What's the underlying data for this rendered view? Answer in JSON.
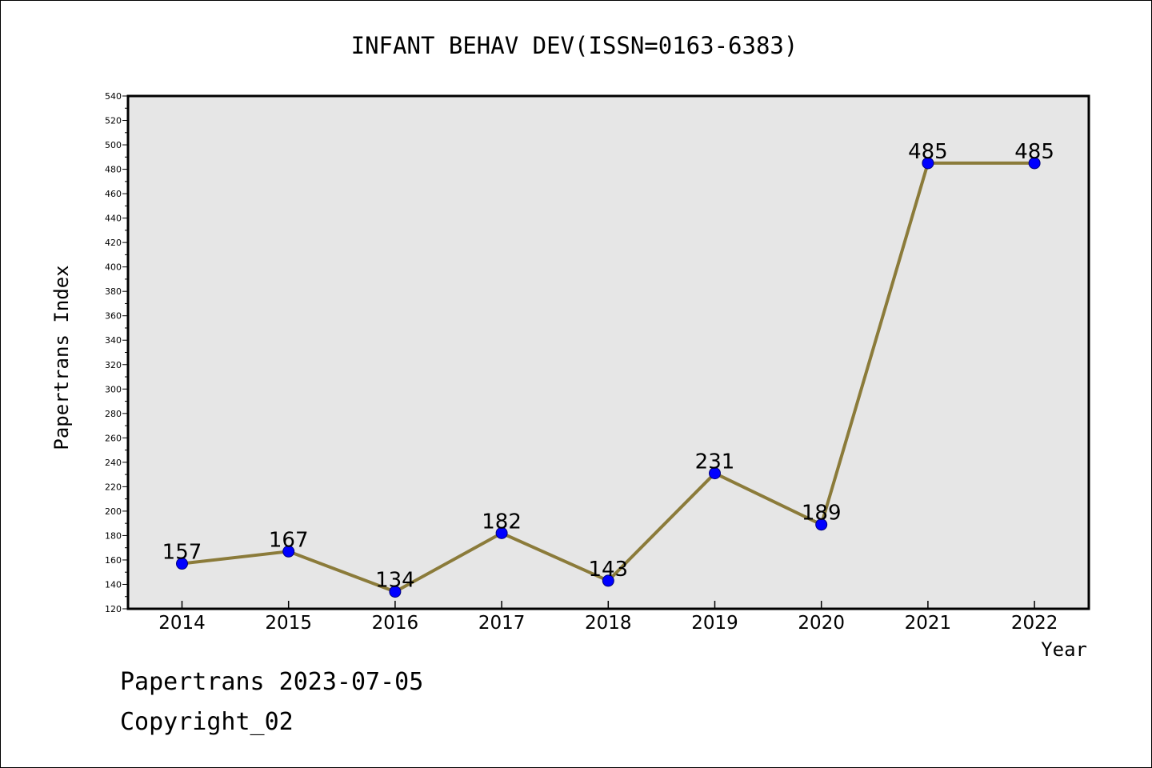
{
  "chart_data": {
    "type": "line",
    "title": "INFANT BEHAV DEV(ISSN=0163-6383)",
    "xlabel": "Year",
    "ylabel": "Papertrans Index",
    "categories": [
      "2014",
      "2015",
      "2016",
      "2017",
      "2018",
      "2019",
      "2020",
      "2021",
      "2022"
    ],
    "series": [
      {
        "values": [
          157,
          167,
          134,
          182,
          143,
          231,
          189,
          485,
          485
        ]
      }
    ],
    "data_labels": [
      "157",
      "167",
      "134",
      "182",
      "143",
      "231",
      "189",
      "485",
      "485"
    ],
    "ylim": [
      120,
      540
    ],
    "yticks": [
      120,
      140,
      160,
      180,
      200,
      220,
      240,
      260,
      280,
      300,
      320,
      340,
      360,
      380,
      400,
      420,
      440,
      460,
      480,
      500,
      520,
      540
    ],
    "grid": false,
    "colors": {
      "line": "#8B7B3A",
      "marker": "#0000FF",
      "plot_background": "#E6E6E6"
    }
  },
  "footer": {
    "line1": "Papertrans 2023-07-05",
    "line2": "Copyright_02"
  }
}
